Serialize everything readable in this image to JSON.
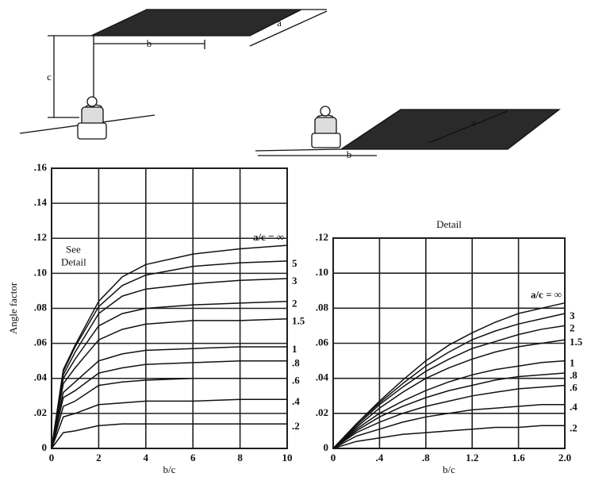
{
  "illustrations": [
    {
      "labels": [
        "c",
        "b",
        "a"
      ]
    },
    {
      "labels": [
        "b",
        "a"
      ]
    }
  ],
  "chart_data": [
    {
      "type": "line",
      "y_label": "Angle factor",
      "x_label": "b/c",
      "annotation": [
        "See",
        "Detail"
      ],
      "x": [
        0,
        0.5,
        1,
        2,
        3,
        4,
        6,
        8,
        10
      ],
      "xlim": [
        0,
        10
      ],
      "xticks": [
        0,
        2,
        4,
        6,
        8,
        10
      ],
      "ylim": [
        0,
        0.16
      ],
      "yticks": [
        0,
        {
          "value": 0.02,
          "label": ".02"
        },
        {
          "value": 0.04,
          "label": ".04"
        },
        {
          "value": 0.06,
          "label": ".06"
        },
        {
          "value": 0.08,
          "label": ".08"
        },
        {
          "value": 0.1,
          "label": ".10"
        },
        {
          "value": 0.12,
          "label": ".12"
        },
        {
          "value": 0.14,
          "label": ".14"
        },
        {
          "value": 0.16,
          "label": ".16"
        }
      ],
      "grid": true,
      "series": [
        {
          "name": "a/c = ∞",
          "color": "#111111",
          "values": [
            0,
            0.045,
            0.059,
            0.084,
            0.098,
            0.105,
            0.111,
            0.114,
            0.116
          ]
        },
        {
          "name": "5",
          "color": "#111111",
          "values": [
            0,
            0.044,
            0.058,
            0.081,
            0.093,
            0.099,
            0.104,
            0.106,
            0.107
          ]
        },
        {
          "name": "3",
          "color": "#111111",
          "values": [
            0,
            0.042,
            0.055,
            0.077,
            0.087,
            0.091,
            0.094,
            0.096,
            0.097
          ]
        },
        {
          "name": "2",
          "color": "#111111",
          "values": [
            0,
            0.04,
            0.051,
            0.07,
            0.077,
            0.08,
            0.082,
            0.083,
            0.084
          ]
        },
        {
          "name": "1.5",
          "color": "#111111",
          "values": [
            0,
            0.037,
            0.046,
            0.062,
            0.068,
            0.071,
            0.073,
            0.073,
            0.074
          ]
        },
        {
          "name": "1",
          "color": "#111111",
          "values": [
            0,
            0.032,
            0.038,
            0.05,
            0.054,
            0.056,
            0.057,
            0.058,
            0.058
          ]
        },
        {
          "name": ".8",
          "color": "#111111",
          "values": [
            0,
            0.029,
            0.033,
            0.043,
            0.046,
            0.048,
            0.049,
            0.05,
            0.05
          ]
        },
        {
          "name": ".6",
          "color": "#111111",
          "values": [
            0,
            0.024,
            0.027,
            0.036,
            0.038,
            0.039,
            0.04,
            0.04,
            0.04
          ]
        },
        {
          "name": ".4",
          "color": "#111111",
          "values": [
            0,
            0.018,
            0.02,
            0.025,
            0.026,
            0.027,
            0.027,
            0.028,
            0.028
          ]
        },
        {
          "name": ".2",
          "color": "#111111",
          "values": [
            0,
            0.009,
            0.01,
            0.013,
            0.014,
            0.014,
            0.014,
            0.014,
            0.014
          ]
        }
      ]
    },
    {
      "type": "line",
      "title": "Detail",
      "x_label": "b/c",
      "x": [
        0,
        0.2,
        0.4,
        0.6,
        0.8,
        1.0,
        1.2,
        1.4,
        1.6,
        1.8,
        2.0
      ],
      "xlim": [
        0,
        2
      ],
      "xticks": [
        0,
        {
          "value": 0.4,
          "label": ".4"
        },
        {
          "value": 0.8,
          "label": ".8"
        },
        1.2,
        1.6,
        {
          "value": 2,
          "label": "2.0"
        }
      ],
      "ylim": [
        0,
        0.12
      ],
      "yticks": [
        0,
        {
          "value": 0.02,
          "label": ".02"
        },
        {
          "value": 0.04,
          "label": ".04"
        },
        {
          "value": 0.06,
          "label": ".06"
        },
        {
          "value": 0.08,
          "label": ".08"
        },
        {
          "value": 0.1,
          "label": ".10"
        },
        {
          "value": 0.12,
          "label": ".12"
        }
      ],
      "grid": true,
      "series": [
        {
          "name": "a/c = ∞",
          "color": "#111111",
          "values": [
            0,
            0.014,
            0.027,
            0.039,
            0.05,
            0.059,
            0.066,
            0.072,
            0.077,
            0.08,
            0.083
          ]
        },
        {
          "name": "3",
          "color": "#111111",
          "values": [
            0,
            0.014,
            0.026,
            0.037,
            0.047,
            0.055,
            0.062,
            0.067,
            0.071,
            0.074,
            0.077
          ]
        },
        {
          "name": "2",
          "color": "#111111",
          "values": [
            0,
            0.013,
            0.025,
            0.035,
            0.044,
            0.051,
            0.057,
            0.061,
            0.065,
            0.068,
            0.07
          ]
        },
        {
          "name": "1.5",
          "color": "#111111",
          "values": [
            0,
            0.012,
            0.023,
            0.032,
            0.04,
            0.046,
            0.051,
            0.055,
            0.058,
            0.06,
            0.062
          ]
        },
        {
          "name": "1",
          "color": "#111111",
          "values": [
            0,
            0.011,
            0.02,
            0.027,
            0.033,
            0.038,
            0.042,
            0.045,
            0.047,
            0.049,
            0.05
          ]
        },
        {
          "name": ".8",
          "color": "#111111",
          "values": [
            0,
            0.01,
            0.018,
            0.024,
            0.029,
            0.033,
            0.036,
            0.039,
            0.041,
            0.042,
            0.043
          ]
        },
        {
          "name": ".6",
          "color": "#111111",
          "values": [
            0,
            0.009,
            0.015,
            0.02,
            0.024,
            0.027,
            0.03,
            0.032,
            0.034,
            0.035,
            0.036
          ]
        },
        {
          "name": ".4",
          "color": "#111111",
          "values": [
            0,
            0.007,
            0.011,
            0.015,
            0.018,
            0.02,
            0.022,
            0.023,
            0.024,
            0.025,
            0.025
          ]
        },
        {
          "name": ".2",
          "color": "#111111",
          "values": [
            0,
            0.004,
            0.006,
            0.008,
            0.009,
            0.01,
            0.011,
            0.012,
            0.012,
            0.013,
            0.013
          ]
        }
      ]
    }
  ]
}
